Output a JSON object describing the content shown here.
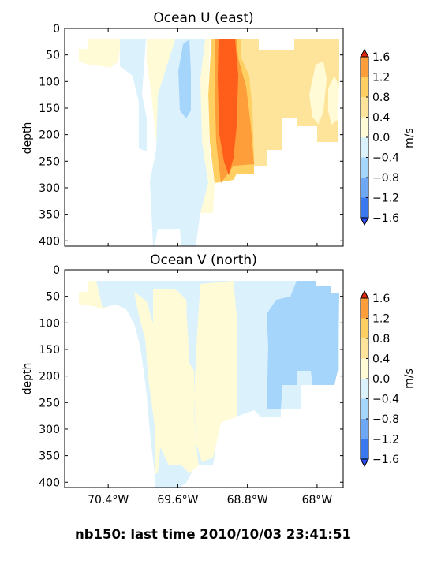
{
  "figure": {
    "caption": "nb150: last time 2010/10/03 23:41:51"
  },
  "colors": {
    "levels": [
      "#2a4cf0",
      "#3a78f0",
      "#6ea8f5",
      "#a6d5fb",
      "#dbf1fc",
      "#fffbd7",
      "#fee49a",
      "#ffcf61",
      "#fe9e3b",
      "#fe5e1a",
      "#e02810"
    ],
    "frame": "#000000",
    "background": "#ffffff"
  },
  "chart_data": [
    {
      "type": "contourf",
      "title": "Ocean U (east)",
      "ylabel": "depth",
      "ylim": [
        410,
        0
      ],
      "y_ticks": [
        "0",
        "50",
        "100",
        "150",
        "200",
        "250",
        "300",
        "350",
        "400"
      ],
      "y_tick_values": [
        0,
        50,
        100,
        150,
        200,
        250,
        300,
        350,
        400
      ],
      "xlim": [
        -70.9,
        -67.7
      ],
      "x_tick_values": [
        -70.4,
        -69.6,
        -68.8,
        -68.0
      ],
      "x_ticks": [],
      "colorbar": {
        "label": "m/s",
        "ticks": [
          "1.6",
          "1.2",
          "0.8",
          "0.4",
          "0.0",
          "−0.4",
          "−0.8",
          "−1.2",
          "−1.6"
        ],
        "levels": [
          -1.6,
          -1.2,
          -0.8,
          -0.4,
          0.0,
          0.4,
          0.8,
          1.2,
          1.6
        ]
      },
      "regions": [
        {
          "band": [
            0.0,
            0.4
          ],
          "lon": [
            -70.75,
            -70.2
          ],
          "depth": [
            20,
            100
          ]
        },
        {
          "band": [
            -0.4,
            0.0
          ],
          "lon": [
            -70.2,
            -69.92
          ],
          "depth": [
            20,
            230
          ]
        },
        {
          "band": [
            0.0,
            0.4
          ],
          "lon": [
            -69.92,
            -69.7
          ],
          "depth": [
            20,
            300
          ]
        },
        {
          "band": [
            -0.4,
            0.0
          ],
          "lon": [
            -69.7,
            -69.2
          ],
          "depth": [
            20,
            410
          ]
        },
        {
          "band": [
            -0.8,
            -0.4
          ],
          "lon": [
            -69.42,
            -69.28
          ],
          "depth": [
            30,
            170
          ]
        },
        {
          "band": [
            0.0,
            0.4
          ],
          "lon": [
            -69.2,
            -69.03
          ],
          "depth": [
            20,
            350
          ]
        },
        {
          "band": [
            0.4,
            0.8
          ],
          "lon": [
            -69.03,
            -68.6
          ],
          "depth": [
            20,
            280
          ]
        },
        {
          "band": [
            0.8,
            1.2
          ],
          "lon": [
            -68.9,
            -68.55
          ],
          "depth": [
            20,
            280
          ]
        },
        {
          "band": [
            1.2,
            1.6
          ],
          "lon": [
            -68.85,
            -68.65
          ],
          "depth": [
            20,
            250
          ]
        },
        {
          "band": [
            0.4,
            0.8
          ],
          "lon": [
            -68.6,
            -67.72
          ],
          "depth": [
            20,
            260
          ]
        },
        {
          "band": [
            0.0,
            0.4
          ],
          "lon": [
            -68.05,
            -67.8
          ],
          "depth": [
            70,
            200
          ]
        }
      ]
    },
    {
      "type": "contourf",
      "title": "Ocean V (north)",
      "ylabel": "depth",
      "ylim": [
        410,
        0
      ],
      "y_ticks": [
        "0",
        "50",
        "100",
        "150",
        "200",
        "250",
        "300",
        "350",
        "400"
      ],
      "y_tick_values": [
        0,
        50,
        100,
        150,
        200,
        250,
        300,
        350,
        400
      ],
      "xlim": [
        -70.9,
        -67.7
      ],
      "x_ticks": [
        "70.4°W",
        "69.6°W",
        "68.8°W",
        "68°W"
      ],
      "x_tick_values": [
        -70.4,
        -69.6,
        -68.8,
        -68.0
      ],
      "colorbar": {
        "label": "m/s",
        "ticks": [
          "1.6",
          "1.2",
          "0.8",
          "0.4",
          "0.0",
          "−0.4",
          "−0.8",
          "−1.2",
          "−1.6"
        ],
        "levels": [
          -1.6,
          -1.2,
          -0.8,
          -0.4,
          0.0,
          0.4,
          0.8,
          1.2,
          1.6
        ]
      },
      "regions": [
        {
          "band": [
            0.0,
            0.4
          ],
          "lon": [
            -70.75,
            -70.35
          ],
          "depth": [
            20,
            70
          ]
        },
        {
          "band": [
            -0.4,
            0.0
          ],
          "lon": [
            -70.35,
            -69.7
          ],
          "depth": [
            20,
            400
          ]
        },
        {
          "band": [
            0.0,
            0.4
          ],
          "lon": [
            -70.2,
            -69.9
          ],
          "depth": [
            30,
            110
          ]
        },
        {
          "band": [
            0.0,
            0.4
          ],
          "lon": [
            -69.75,
            -69.05
          ],
          "depth": [
            30,
            360
          ]
        },
        {
          "band": [
            -0.4,
            0.0
          ],
          "lon": [
            -69.25,
            -69.05
          ],
          "depth": [
            60,
            220
          ]
        },
        {
          "band": [
            0.0,
            0.4
          ],
          "lon": [
            -69.05,
            -68.62
          ],
          "depth": [
            20,
            280
          ]
        },
        {
          "band": [
            -0.4,
            0.0
          ],
          "lon": [
            -68.62,
            -67.72
          ],
          "depth": [
            20,
            280
          ]
        },
        {
          "band": [
            -0.8,
            -0.4
          ],
          "lon": [
            -68.28,
            -67.75
          ],
          "depth": [
            30,
            260
          ]
        }
      ]
    }
  ]
}
